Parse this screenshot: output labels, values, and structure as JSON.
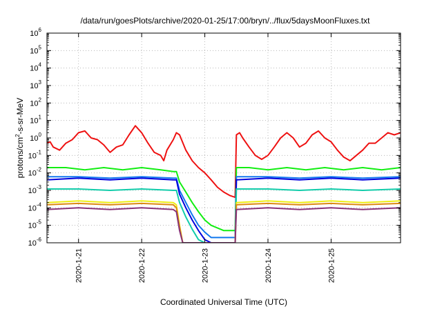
{
  "chart_data": {
    "type": "line",
    "title": "/data/run/goesPlots/archive/2020-01-25/17:00/bryn/../flux/5daysMoonFluxes.txt",
    "xlabel": "Coordinated Universal Time (UTC)",
    "ylabel_base": "protons/cm",
    "ylabel_exp": "2",
    "ylabel_tail": "-s-sr-MeV",
    "y_scale": "log",
    "ylim": [
      1e-06,
      1000000.0
    ],
    "xlim": [
      0,
      5.6
    ],
    "x_ticks": [
      {
        "label": "2020-1-21",
        "value": 0.5
      },
      {
        "label": "2020-1-22",
        "value": 1.5
      },
      {
        "label": "2020-1-23",
        "value": 2.5
      },
      {
        "label": "2020-1-24",
        "value": 3.5
      },
      {
        "label": "2020-1-25",
        "value": 4.5
      }
    ],
    "y_ticks": [
      {
        "base": "10",
        "exp": "-6",
        "value": -6
      },
      {
        "base": "10",
        "exp": "-5",
        "value": -5
      },
      {
        "base": "10",
        "exp": "-4",
        "value": -4
      },
      {
        "base": "10",
        "exp": "-3",
        "value": -3
      },
      {
        "base": "10",
        "exp": "-2",
        "value": -2
      },
      {
        "base": "10",
        "exp": "-1",
        "value": -1
      },
      {
        "base": "10",
        "exp": "0",
        "value": 0
      },
      {
        "base": "10",
        "exp": "1",
        "value": 1
      },
      {
        "base": "10",
        "exp": "2",
        "value": 2
      },
      {
        "base": "10",
        "exp": "3",
        "value": 3
      },
      {
        "base": "10",
        "exp": "4",
        "value": 4
      },
      {
        "base": "10",
        "exp": "5",
        "value": 5
      },
      {
        "base": "10",
        "exp": "6",
        "value": 6
      }
    ],
    "grid": "dotted",
    "series": [
      {
        "color": "#ee1111",
        "x": [
          0,
          0.05,
          0.1,
          0.2,
          0.3,
          0.4,
          0.5,
          0.6,
          0.7,
          0.8,
          0.9,
          1.0,
          1.1,
          1.2,
          1.3,
          1.4,
          1.5,
          1.6,
          1.7,
          1.8,
          1.85,
          1.9,
          2.0,
          2.05,
          2.1,
          2.2,
          2.3,
          2.4,
          2.5,
          2.6,
          2.7,
          2.8,
          2.9,
          2.98,
          3.0,
          3.05,
          3.1,
          3.2,
          3.3,
          3.4,
          3.5,
          3.6,
          3.7,
          3.8,
          3.9,
          4.0,
          4.1,
          4.2,
          4.3,
          4.4,
          4.5,
          4.6,
          4.7,
          4.8,
          4.9,
          5.0,
          5.1,
          5.2,
          5.3,
          5.4,
          5.5,
          5.6
        ],
        "y": [
          0.5,
          0.6,
          0.3,
          0.2,
          0.5,
          0.8,
          2.0,
          2.5,
          1.0,
          0.8,
          0.4,
          0.15,
          0.3,
          0.4,
          1.5,
          5.0,
          2.0,
          0.5,
          0.15,
          0.1,
          0.05,
          0.2,
          0.8,
          2.0,
          1.5,
          0.2,
          0.05,
          0.02,
          0.01,
          0.004,
          0.0015,
          0.0008,
          0.0005,
          0.0004,
          1.5,
          2.0,
          1.0,
          0.3,
          0.1,
          0.06,
          0.1,
          0.3,
          1.0,
          2.0,
          1.0,
          0.3,
          0.5,
          1.5,
          2.5,
          1.0,
          0.6,
          0.2,
          0.08,
          0.05,
          0.1,
          0.2,
          0.5,
          0.5,
          1.0,
          2.0,
          1.5,
          2.0
        ]
      },
      {
        "color": "#11ee11",
        "x": [
          0,
          0.3,
          0.6,
          0.9,
          1.2,
          1.5,
          1.8,
          2.0,
          2.05,
          2.1,
          2.2,
          2.3,
          2.4,
          2.5,
          2.6,
          2.8,
          2.98,
          3.0,
          3.2,
          3.5,
          3.8,
          4.1,
          4.4,
          4.7,
          5.0,
          5.3,
          5.6
        ],
        "y": [
          0.02,
          0.02,
          0.015,
          0.02,
          0.015,
          0.02,
          0.015,
          0.012,
          0.012,
          0.003,
          0.0008,
          0.0002,
          6e-05,
          2e-05,
          1e-05,
          5e-06,
          5e-06,
          0.02,
          0.02,
          0.015,
          0.02,
          0.015,
          0.02,
          0.015,
          0.02,
          0.015,
          0.02
        ]
      },
      {
        "color": "#1177ee",
        "x": [
          0,
          0.5,
          1.0,
          1.5,
          2.0,
          2.05,
          2.1,
          2.2,
          2.3,
          2.4,
          2.5,
          2.6,
          2.8,
          2.98,
          3.0,
          3.5,
          4.0,
          4.5,
          5.0,
          5.6
        ],
        "y": [
          0.006,
          0.006,
          0.005,
          0.006,
          0.005,
          0.005,
          0.001,
          0.0002,
          4e-05,
          1e-05,
          4e-06,
          2e-06,
          2e-06,
          2e-06,
          0.006,
          0.006,
          0.005,
          0.006,
          0.005,
          0.006
        ]
      },
      {
        "color": "#0000dd",
        "x": [
          0,
          0.5,
          1.0,
          1.5,
          2.0,
          2.05,
          2.1,
          2.2,
          2.3,
          2.4,
          2.5,
          2.6,
          2.8,
          2.98,
          3.0,
          3.5,
          4.0,
          4.5,
          5.0,
          5.6
        ],
        "y": [
          0.004,
          0.005,
          0.004,
          0.005,
          0.004,
          0.004,
          0.0006,
          0.0001,
          2e-05,
          5e-06,
          1.5e-06,
          1e-06,
          1e-06,
          1e-06,
          0.004,
          0.005,
          0.004,
          0.005,
          0.004,
          0.005
        ]
      },
      {
        "color": "#11ccaa",
        "x": [
          0,
          0.5,
          1.0,
          1.5,
          2.0,
          2.05,
          2.1,
          2.2,
          2.3,
          2.4,
          2.5,
          2.6,
          2.8,
          2.98,
          3.0,
          3.5,
          4.0,
          4.5,
          5.0,
          5.6
        ],
        "y": [
          0.0012,
          0.0012,
          0.001,
          0.0012,
          0.001,
          0.001,
          0.0002,
          3e-05,
          6e-06,
          1.5e-06,
          1e-06,
          1e-06,
          1e-06,
          1e-06,
          0.0012,
          0.0012,
          0.001,
          0.0012,
          0.001,
          0.0012
        ]
      },
      {
        "color": "#eeee11",
        "x": [
          0,
          0.5,
          1.0,
          1.5,
          2.0,
          2.05,
          2.1,
          2.15,
          2.98,
          3.0,
          3.5,
          4.0,
          4.5,
          5.0,
          5.6
        ],
        "y": [
          0.0002,
          0.00025,
          0.0002,
          0.00025,
          0.0002,
          0.00015,
          1e-05,
          1e-06,
          1e-06,
          0.0002,
          0.00025,
          0.0002,
          0.00025,
          0.0002,
          0.00025
        ]
      },
      {
        "color": "#dd8811",
        "x": [
          0,
          0.5,
          1.0,
          1.5,
          2.0,
          2.05,
          2.1,
          2.15,
          2.98,
          3.0,
          3.5,
          4.0,
          4.5,
          5.0,
          5.6
        ],
        "y": [
          0.00015,
          0.00018,
          0.00015,
          0.00018,
          0.00015,
          0.0001,
          8e-06,
          1e-06,
          1e-06,
          0.00015,
          0.00018,
          0.00015,
          0.00018,
          0.00015,
          0.00018
        ]
      },
      {
        "color": "#883377",
        "x": [
          0,
          0.5,
          1.0,
          1.5,
          2.0,
          2.05,
          2.1,
          2.15,
          2.98,
          3.0,
          3.5,
          4.0,
          4.5,
          5.0,
          5.6
        ],
        "y": [
          8e-05,
          0.0001,
          8e-05,
          0.0001,
          8e-05,
          6e-05,
          5e-06,
          1e-06,
          1e-06,
          8e-05,
          0.0001,
          8e-05,
          0.0001,
          8e-05,
          0.0001
        ]
      }
    ]
  }
}
